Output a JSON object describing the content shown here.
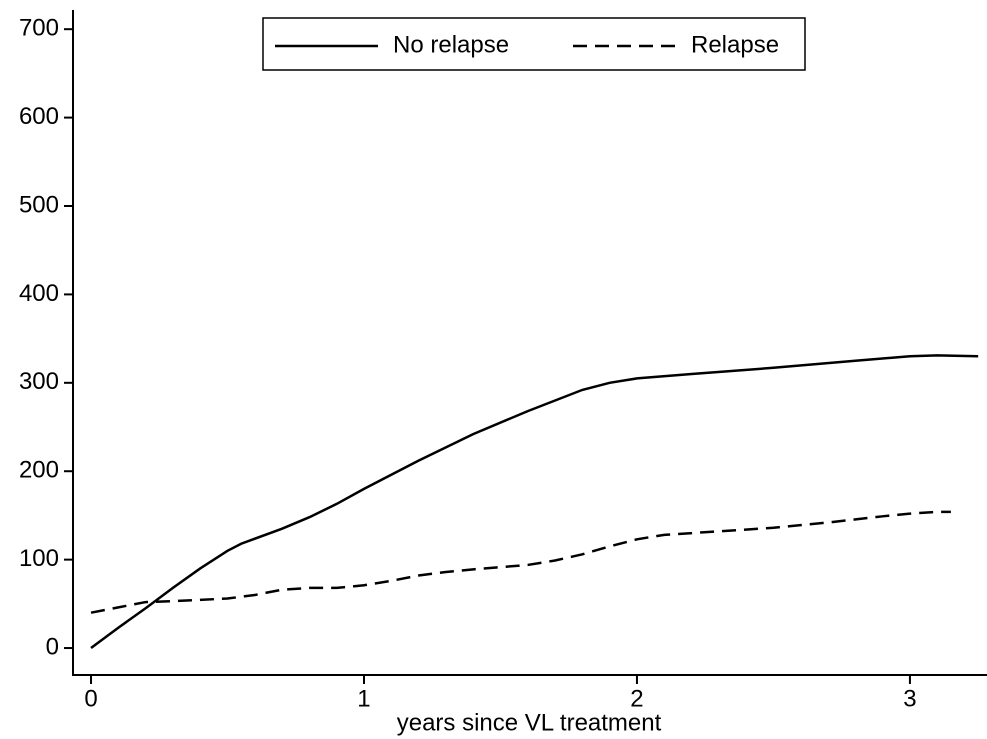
{
  "chart_data": {
    "type": "line",
    "x_label": "years since VL treatment",
    "xlim": [
      -0.066,
      3.275
    ],
    "ylim": [
      -30.5,
      721.7
    ],
    "xticks": [
      0,
      1,
      2,
      3
    ],
    "yticks": [
      0,
      100,
      200,
      300,
      400,
      500,
      600,
      700
    ],
    "grid": false,
    "legend": "top",
    "series": [
      {
        "name": "No relapse",
        "color": "#000000",
        "style": "solid",
        "x": [
          0,
          0.1,
          0.2,
          0.3,
          0.4,
          0.5,
          0.55,
          0.7,
          0.8,
          0.9,
          1.0,
          1.2,
          1.4,
          1.6,
          1.8,
          1.9,
          2.0,
          2.2,
          2.5,
          2.8,
          3.0,
          3.1,
          3.25
        ],
        "values": [
          0,
          23,
          45,
          68,
          90,
          110,
          118,
          135,
          148,
          163,
          180,
          212,
          242,
          268,
          292,
          300,
          305,
          310,
          317,
          325,
          330,
          331,
          330
        ]
      },
      {
        "name": "Relapse",
        "color": "#000000",
        "style": "dashed",
        "x": [
          0,
          0.1,
          0.2,
          0.3,
          0.5,
          0.6,
          0.7,
          0.8,
          0.9,
          1.0,
          1.1,
          1.2,
          1.3,
          1.4,
          1.6,
          1.7,
          1.8,
          1.9,
          2.0,
          2.1,
          2.3,
          2.5,
          2.7,
          2.9,
          3.0,
          3.1,
          3.15
        ],
        "values": [
          40,
          46,
          52,
          53,
          56,
          60,
          66,
          68,
          68,
          71,
          76,
          82,
          86,
          89,
          94,
          99,
          106,
          115,
          123,
          128,
          132,
          136,
          142,
          149,
          152,
          154,
          154
        ]
      }
    ]
  }
}
